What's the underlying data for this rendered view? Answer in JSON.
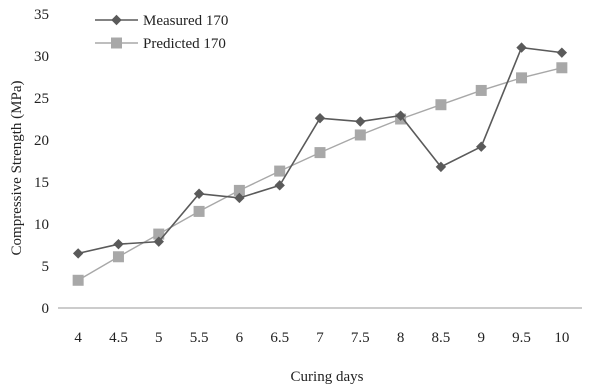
{
  "chart_data": {
    "type": "line",
    "title": "",
    "xlabel": "Curing days",
    "ylabel": "Compressive Strength (MPa)",
    "ylim": [
      0,
      35
    ],
    "yticks": [
      "0",
      "5",
      "10",
      "15",
      "20",
      "25",
      "30",
      "35"
    ],
    "categories": [
      "4",
      "4.5",
      "5",
      "5.5",
      "6",
      "6.5",
      "7",
      "7.5",
      "8",
      "8.5",
      "9",
      "9.5",
      "10"
    ],
    "grid": false,
    "legend_position": "top-left",
    "series": [
      {
        "name": "Measured 170",
        "marker": "diamond",
        "color": "#5a5a5a",
        "values": [
          6.5,
          7.6,
          7.9,
          13.6,
          13.1,
          14.6,
          22.6,
          22.2,
          22.9,
          16.8,
          19.2,
          31.0,
          30.4
        ]
      },
      {
        "name": "Predicted 170",
        "marker": "square",
        "color": "#a8a8a8",
        "values": [
          3.3,
          6.1,
          8.8,
          11.5,
          14.0,
          16.3,
          18.5,
          20.6,
          22.5,
          24.2,
          25.9,
          27.4,
          28.6
        ]
      }
    ]
  }
}
